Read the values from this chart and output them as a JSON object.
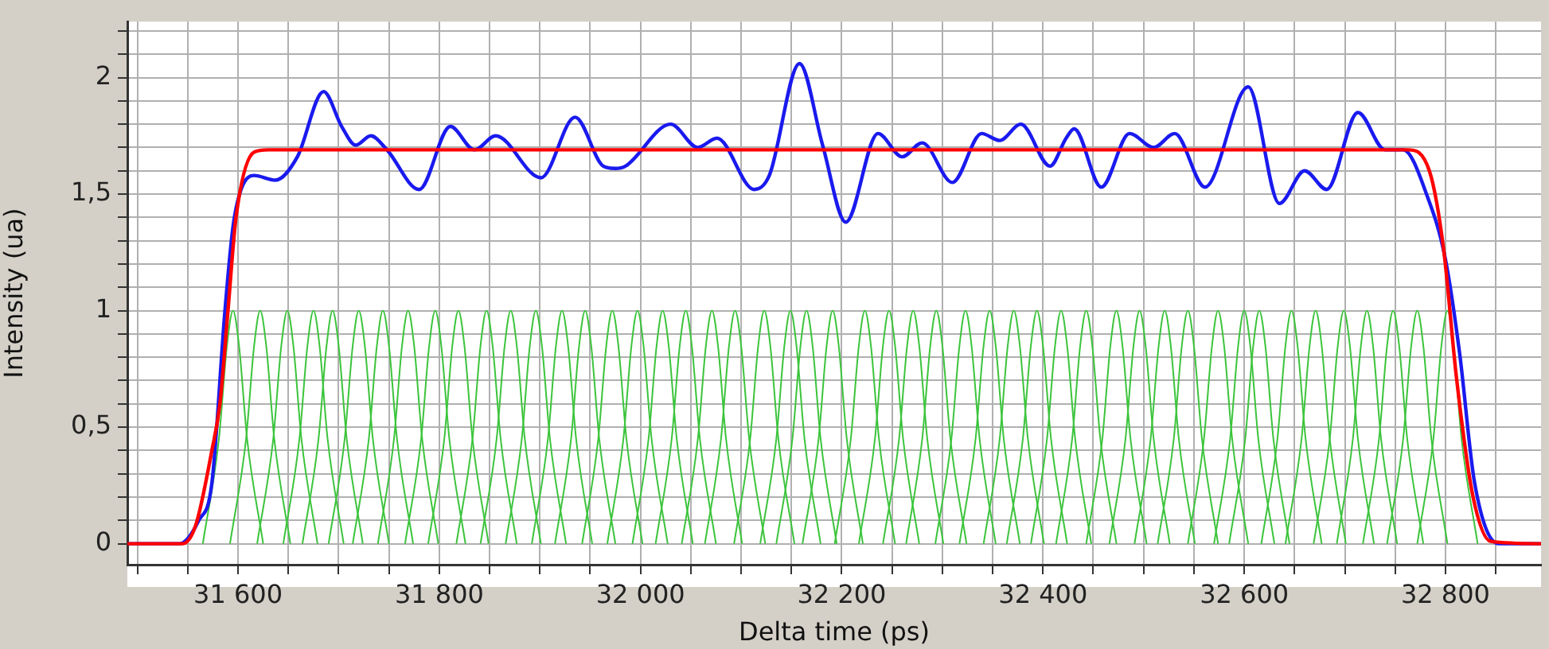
{
  "chart_data": {
    "type": "line",
    "xlabel": "Delta time (ps)",
    "ylabel": "Intensity (ua)",
    "xlim": [
      31490,
      32895
    ],
    "ylim": [
      -0.09,
      2.24
    ],
    "grid": true,
    "marker": "none",
    "line_style": "solid",
    "xticks": [
      {
        "value": 31500,
        "label": null
      },
      {
        "value": 31550,
        "label": null
      },
      {
        "value": 31600,
        "label": "31 600"
      },
      {
        "value": 31650,
        "label": null
      },
      {
        "value": 31700,
        "label": null
      },
      {
        "value": 31750,
        "label": null
      },
      {
        "value": 31800,
        "label": "31 800"
      },
      {
        "value": 31850,
        "label": null
      },
      {
        "value": 31900,
        "label": null
      },
      {
        "value": 31950,
        "label": null
      },
      {
        "value": 32000,
        "label": "32 000"
      },
      {
        "value": 32050,
        "label": null
      },
      {
        "value": 32100,
        "label": null
      },
      {
        "value": 32150,
        "label": null
      },
      {
        "value": 32200,
        "label": "32 200"
      },
      {
        "value": 32250,
        "label": null
      },
      {
        "value": 32300,
        "label": null
      },
      {
        "value": 32350,
        "label": null
      },
      {
        "value": 32400,
        "label": "32 400"
      },
      {
        "value": 32450,
        "label": null
      },
      {
        "value": 32500,
        "label": null
      },
      {
        "value": 32550,
        "label": null
      },
      {
        "value": 32600,
        "label": "32 600"
      },
      {
        "value": 32650,
        "label": null
      },
      {
        "value": 32700,
        "label": null
      },
      {
        "value": 32750,
        "label": null
      },
      {
        "value": 32800,
        "label": "32 800"
      },
      {
        "value": 32850,
        "label": null
      }
    ],
    "yticks": [
      0,
      {
        "value": 0.1,
        "label": null
      },
      {
        "value": 0.2,
        "label": null
      },
      {
        "value": 0.3,
        "label": null
      },
      {
        "value": 0.4,
        "label": null
      },
      {
        "value": 0.5,
        "label": "0,5"
      },
      {
        "value": 0.6,
        "label": null
      },
      {
        "value": 0.7,
        "label": null
      },
      {
        "value": 0.8,
        "label": null
      },
      {
        "value": 0.9,
        "label": null
      },
      1,
      {
        "value": 1.1,
        "label": null
      },
      {
        "value": 1.2,
        "label": null
      },
      {
        "value": 1.3,
        "label": null
      },
      {
        "value": 1.4,
        "label": null
      },
      {
        "value": 1.5,
        "label": "1,5"
      },
      {
        "value": 1.6,
        "label": null
      },
      {
        "value": 1.7,
        "label": null
      },
      {
        "value": 1.8,
        "label": null
      },
      {
        "value": 1.9,
        "label": null
      },
      2,
      {
        "value": 2.1,
        "label": null
      },
      {
        "value": 2.2,
        "label": null
      }
    ],
    "series": [
      {
        "color": "#ff0000",
        "x": [
          31490,
          31545,
          31558,
          31574,
          31582,
          31590,
          31598,
          31616,
          31630,
          32763,
          32784,
          32798,
          32811,
          32827,
          32845,
          32895
        ],
        "values": [
          0,
          0,
          0.08,
          0.4,
          0.6,
          1.0,
          1.4,
          1.68,
          1.69,
          1.69,
          1.6,
          1.27,
          0.71,
          0.21,
          0.01,
          0
        ]
      },
      {
        "color": "#1a1aee",
        "x": [
          31490,
          31542,
          31561,
          31574,
          31587,
          31595,
          31603,
          31616,
          31637,
          31659,
          31685,
          31703,
          31717,
          31732,
          31748,
          31780,
          31811,
          31835,
          31856,
          31901,
          31935,
          31963,
          31975,
          31985,
          32030,
          32057,
          32076,
          32113,
          32128,
          32158,
          32181,
          32204,
          32236,
          32260,
          32280,
          32310,
          32339,
          32357,
          32378,
          32407,
          32423,
          32431,
          32458,
          32486,
          32510,
          32531,
          32561,
          32604,
          32635,
          32660,
          32682,
          32713,
          32740,
          32758,
          32782,
          32800,
          32814,
          32829,
          32853,
          32895
        ],
        "values": [
          0,
          0,
          0.1,
          0.26,
          1.0,
          1.36,
          1.52,
          1.58,
          1.56,
          1.66,
          1.94,
          1.79,
          1.71,
          1.75,
          1.69,
          1.52,
          1.79,
          1.69,
          1.75,
          1.57,
          1.83,
          1.62,
          1.61,
          1.62,
          1.8,
          1.7,
          1.74,
          1.52,
          1.58,
          2.06,
          1.71,
          1.38,
          1.76,
          1.66,
          1.72,
          1.55,
          1.76,
          1.73,
          1.8,
          1.62,
          1.74,
          1.78,
          1.53,
          1.76,
          1.7,
          1.76,
          1.53,
          1.96,
          1.46,
          1.6,
          1.52,
          1.85,
          1.69,
          1.69,
          1.49,
          1.22,
          0.82,
          0.26,
          0,
          0
        ]
      },
      {
        "color": "#3cc43c",
        "x": [
          31565,
          31581,
          31589,
          31595,
          31601,
          31609,
          31625
        ],
        "values": [
          0,
          0.45,
          0.85,
          1,
          0.85,
          0.45,
          0
        ]
      },
      {
        "color": "#3cc43c",
        "x": [
          31592,
          31608,
          31616,
          31622,
          31628,
          31636,
          31652
        ],
        "values": [
          0,
          0.45,
          0.85,
          1,
          0.85,
          0.45,
          0
        ]
      },
      {
        "color": "#3cc43c",
        "x": [
          31619,
          31635,
          31643,
          31649,
          31655,
          31663,
          31679
        ],
        "values": [
          0,
          0.45,
          0.85,
          1,
          0.85,
          0.45,
          0
        ]
      },
      {
        "color": "#3cc43c",
        "x": [
          31645,
          31661,
          31669,
          31675,
          31681,
          31689,
          31705
        ],
        "values": [
          0,
          0.45,
          0.85,
          1,
          0.85,
          0.45,
          0
        ]
      },
      {
        "color": "#3cc43c",
        "x": [
          31664,
          31680,
          31688,
          31694,
          31700,
          31708,
          31724
        ],
        "values": [
          0,
          0.45,
          0.85,
          1,
          0.85,
          0.45,
          0
        ]
      },
      {
        "color": "#3cc43c",
        "x": [
          31690,
          31706,
          31714,
          31720,
          31726,
          31734,
          31750
        ],
        "values": [
          0,
          0.45,
          0.85,
          1,
          0.85,
          0.45,
          0
        ]
      },
      {
        "color": "#3cc43c",
        "x": [
          31714,
          31730,
          31738,
          31744,
          31750,
          31758,
          31774
        ],
        "values": [
          0,
          0.45,
          0.85,
          1,
          0.85,
          0.45,
          0
        ]
      },
      {
        "color": "#3cc43c",
        "x": [
          31739,
          31755,
          31763,
          31769,
          31775,
          31783,
          31799
        ],
        "values": [
          0,
          0.45,
          0.85,
          1,
          0.85,
          0.45,
          0
        ]
      },
      {
        "color": "#3cc43c",
        "x": [
          31766,
          31782,
          31790,
          31796,
          31802,
          31810,
          31826
        ],
        "values": [
          0,
          0.45,
          0.85,
          1,
          0.85,
          0.45,
          0
        ]
      },
      {
        "color": "#3cc43c",
        "x": [
          31789,
          31805,
          31813,
          31819,
          31825,
          31833,
          31849
        ],
        "values": [
          0,
          0.45,
          0.85,
          1,
          0.85,
          0.45,
          0
        ]
      },
      {
        "color": "#3cc43c",
        "x": [
          31817,
          31833,
          31841,
          31847,
          31853,
          31861,
          31877
        ],
        "values": [
          0,
          0.45,
          0.85,
          1,
          0.85,
          0.45,
          0
        ]
      },
      {
        "color": "#3cc43c",
        "x": [
          31841,
          31857,
          31865,
          31871,
          31877,
          31885,
          31901
        ],
        "values": [
          0,
          0.45,
          0.85,
          1,
          0.85,
          0.45,
          0
        ]
      },
      {
        "color": "#3cc43c",
        "x": [
          31866,
          31882,
          31890,
          31896,
          31902,
          31910,
          31926
        ],
        "values": [
          0,
          0.45,
          0.85,
          1,
          0.85,
          0.45,
          0
        ]
      },
      {
        "color": "#3cc43c",
        "x": [
          31892,
          31908,
          31916,
          31922,
          31928,
          31936,
          31952
        ],
        "values": [
          0,
          0.45,
          0.85,
          1,
          0.85,
          0.45,
          0
        ]
      },
      {
        "color": "#3cc43c",
        "x": [
          31915,
          31931,
          31939,
          31945,
          31951,
          31959,
          31975
        ],
        "values": [
          0,
          0.45,
          0.85,
          1,
          0.85,
          0.45,
          0
        ]
      },
      {
        "color": "#3cc43c",
        "x": [
          31942,
          31958,
          31966,
          31972,
          31978,
          31986,
          32002
        ],
        "values": [
          0,
          0.45,
          0.85,
          1,
          0.85,
          0.45,
          0
        ]
      },
      {
        "color": "#3cc43c",
        "x": [
          31967,
          31983,
          31991,
          31997,
          32003,
          32011,
          32027
        ],
        "values": [
          0,
          0.45,
          0.85,
          1,
          0.85,
          0.45,
          0
        ]
      },
      {
        "color": "#3cc43c",
        "x": [
          31992,
          32008,
          32016,
          32022,
          32028,
          32036,
          32052
        ],
        "values": [
          0,
          0.45,
          0.85,
          1,
          0.85,
          0.45,
          0
        ]
      },
      {
        "color": "#3cc43c",
        "x": [
          32015,
          32031,
          32039,
          32045,
          32051,
          32059,
          32075
        ],
        "values": [
          0,
          0.45,
          0.85,
          1,
          0.85,
          0.45,
          0
        ]
      },
      {
        "color": "#3cc43c",
        "x": [
          32041,
          32057,
          32065,
          32071,
          32077,
          32085,
          32101
        ],
        "values": [
          0,
          0.45,
          0.85,
          1,
          0.85,
          0.45,
          0
        ]
      },
      {
        "color": "#3cc43c",
        "x": [
          32064,
          32080,
          32088,
          32094,
          32100,
          32108,
          32124
        ],
        "values": [
          0,
          0.45,
          0.85,
          1,
          0.85,
          0.45,
          0
        ]
      },
      {
        "color": "#3cc43c",
        "x": [
          32093,
          32109,
          32117,
          32123,
          32129,
          32137,
          32153
        ],
        "values": [
          0,
          0.45,
          0.85,
          1,
          0.85,
          0.45,
          0
        ]
      },
      {
        "color": "#3cc43c",
        "x": [
          32119,
          32135,
          32143,
          32149,
          32155,
          32163,
          32179
        ],
        "values": [
          0,
          0.45,
          0.85,
          1,
          0.85,
          0.45,
          0
        ]
      },
      {
        "color": "#3cc43c",
        "x": [
          32135,
          32151,
          32159,
          32165,
          32171,
          32179,
          32195
        ],
        "values": [
          0,
          0.45,
          0.85,
          1,
          0.85,
          0.45,
          0
        ]
      },
      {
        "color": "#3cc43c",
        "x": [
          32161,
          32177,
          32185,
          32191,
          32197,
          32205,
          32221
        ],
        "values": [
          0,
          0.45,
          0.85,
          1,
          0.85,
          0.45,
          0
        ]
      },
      {
        "color": "#3cc43c",
        "x": [
          32193,
          32209,
          32217,
          32223,
          32229,
          32237,
          32253
        ],
        "values": [
          0,
          0.45,
          0.85,
          1,
          0.85,
          0.45,
          0
        ]
      },
      {
        "color": "#3cc43c",
        "x": [
          32217,
          32233,
          32241,
          32247,
          32253,
          32261,
          32277
        ],
        "values": [
          0,
          0.45,
          0.85,
          1,
          0.85,
          0.45,
          0
        ]
      },
      {
        "color": "#3cc43c",
        "x": [
          32241,
          32257,
          32265,
          32271,
          32277,
          32285,
          32301
        ],
        "values": [
          0,
          0.45,
          0.85,
          1,
          0.85,
          0.45,
          0
        ]
      },
      {
        "color": "#3cc43c",
        "x": [
          32264,
          32280,
          32288,
          32294,
          32300,
          32308,
          32324
        ],
        "values": [
          0,
          0.45,
          0.85,
          1,
          0.85,
          0.45,
          0
        ]
      },
      {
        "color": "#3cc43c",
        "x": [
          32293,
          32309,
          32317,
          32323,
          32329,
          32337,
          32353
        ],
        "values": [
          0,
          0.45,
          0.85,
          1,
          0.85,
          0.45,
          0
        ]
      },
      {
        "color": "#3cc43c",
        "x": [
          32317,
          32333,
          32341,
          32347,
          32353,
          32361,
          32377
        ],
        "values": [
          0,
          0.45,
          0.85,
          1,
          0.85,
          0.45,
          0
        ]
      },
      {
        "color": "#3cc43c",
        "x": [
          32341,
          32357,
          32365,
          32371,
          32377,
          32385,
          32401
        ],
        "values": [
          0,
          0.45,
          0.85,
          1,
          0.85,
          0.45,
          0
        ]
      },
      {
        "color": "#3cc43c",
        "x": [
          32364,
          32380,
          32388,
          32394,
          32400,
          32408,
          32424
        ],
        "values": [
          0,
          0.45,
          0.85,
          1,
          0.85,
          0.45,
          0
        ]
      },
      {
        "color": "#3cc43c",
        "x": [
          32388,
          32404,
          32412,
          32418,
          32424,
          32432,
          32448
        ],
        "values": [
          0,
          0.45,
          0.85,
          1,
          0.85,
          0.45,
          0
        ]
      },
      {
        "color": "#3cc43c",
        "x": [
          32413,
          32429,
          32437,
          32443,
          32449,
          32457,
          32473
        ],
        "values": [
          0,
          0.45,
          0.85,
          1,
          0.85,
          0.45,
          0
        ]
      },
      {
        "color": "#3cc43c",
        "x": [
          32443,
          32459,
          32467,
          32473,
          32479,
          32487,
          32503
        ],
        "values": [
          0,
          0.45,
          0.85,
          1,
          0.85,
          0.45,
          0
        ]
      },
      {
        "color": "#3cc43c",
        "x": [
          32466,
          32482,
          32490,
          32496,
          32502,
          32510,
          32526
        ],
        "values": [
          0,
          0.45,
          0.85,
          1,
          0.85,
          0.45,
          0
        ]
      },
      {
        "color": "#3cc43c",
        "x": [
          32491,
          32507,
          32515,
          32521,
          32527,
          32535,
          32551
        ],
        "values": [
          0,
          0.45,
          0.85,
          1,
          0.85,
          0.45,
          0
        ]
      },
      {
        "color": "#3cc43c",
        "x": [
          32514,
          32530,
          32538,
          32544,
          32550,
          32558,
          32574
        ],
        "values": [
          0,
          0.45,
          0.85,
          1,
          0.85,
          0.45,
          0
        ]
      },
      {
        "color": "#3cc43c",
        "x": [
          32544,
          32560,
          32568,
          32574,
          32580,
          32588,
          32604
        ],
        "values": [
          0,
          0.45,
          0.85,
          1,
          0.85,
          0.45,
          0
        ]
      },
      {
        "color": "#3cc43c",
        "x": [
          32570,
          32586,
          32594,
          32600,
          32606,
          32614,
          32630
        ],
        "values": [
          0,
          0.45,
          0.85,
          1,
          0.85,
          0.45,
          0
        ]
      },
      {
        "color": "#3cc43c",
        "x": [
          32585,
          32601,
          32609,
          32615,
          32621,
          32629,
          32645
        ],
        "values": [
          0,
          0.45,
          0.85,
          1,
          0.85,
          0.45,
          0
        ]
      },
      {
        "color": "#3cc43c",
        "x": [
          32617,
          32633,
          32641,
          32647,
          32653,
          32661,
          32677
        ],
        "values": [
          0,
          0.45,
          0.85,
          1,
          0.85,
          0.45,
          0
        ]
      },
      {
        "color": "#3cc43c",
        "x": [
          32641,
          32657,
          32665,
          32671,
          32677,
          32685,
          32701
        ],
        "values": [
          0,
          0.45,
          0.85,
          1,
          0.85,
          0.45,
          0
        ]
      },
      {
        "color": "#3cc43c",
        "x": [
          32669,
          32685,
          32693,
          32699,
          32705,
          32713,
          32729
        ],
        "values": [
          0,
          0.45,
          0.85,
          1,
          0.85,
          0.45,
          0
        ]
      },
      {
        "color": "#3cc43c",
        "x": [
          32692,
          32708,
          32716,
          32722,
          32728,
          32736,
          32752
        ],
        "values": [
          0,
          0.45,
          0.85,
          1,
          0.85,
          0.45,
          0
        ]
      },
      {
        "color": "#3cc43c",
        "x": [
          32718,
          32734,
          32742,
          32748,
          32754,
          32762,
          32778
        ],
        "values": [
          0,
          0.45,
          0.85,
          1,
          0.85,
          0.45,
          0
        ]
      },
      {
        "color": "#3cc43c",
        "x": [
          32742,
          32758,
          32766,
          32772,
          32778,
          32786,
          32802
        ],
        "values": [
          0,
          0.45,
          0.85,
          1,
          0.85,
          0.45,
          0
        ]
      },
      {
        "color": "#3cc43c",
        "x": [
          32772,
          32788,
          32796,
          32802,
          32808,
          32816,
          32832
        ],
        "values": [
          0,
          0.45,
          0.85,
          1,
          0.85,
          0.45,
          0
        ]
      }
    ]
  }
}
